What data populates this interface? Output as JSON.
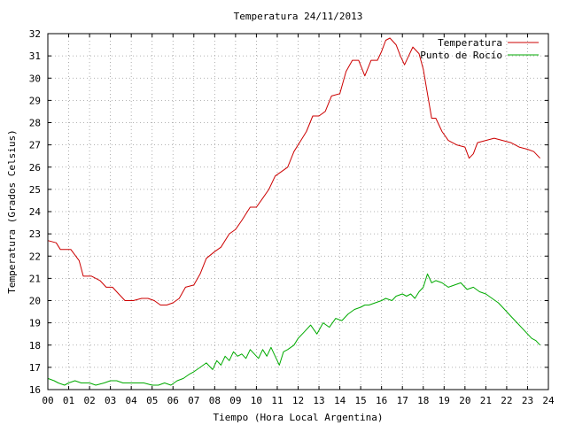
{
  "chart_data": {
    "type": "line",
    "title": "Temperatura 24/11/2013",
    "xlabel": "Tiempo (Hora Local Argentina)",
    "ylabel": "Temperatura (Grados Celsius)",
    "xlim": [
      0,
      24
    ],
    "ylim": [
      16,
      32
    ],
    "grid": true,
    "legend_position": "top-right",
    "x_ticks": [
      "00",
      "01",
      "02",
      "03",
      "04",
      "05",
      "06",
      "07",
      "08",
      "09",
      "10",
      "11",
      "12",
      "13",
      "14",
      "15",
      "16",
      "17",
      "18",
      "19",
      "20",
      "21",
      "22",
      "23",
      "24"
    ],
    "y_ticks": [
      "16",
      "17",
      "18",
      "19",
      "20",
      "21",
      "22",
      "23",
      "24",
      "25",
      "26",
      "27",
      "28",
      "29",
      "30",
      "31",
      "32"
    ],
    "series": [
      {
        "name": "Temperatura",
        "color": "#cc0000",
        "x": [
          0,
          0.4,
          0.6,
          1.1,
          1.5,
          1.7,
          2.1,
          2.5,
          2.8,
          3.1,
          3.4,
          3.7,
          4.1,
          4.5,
          4.8,
          5.1,
          5.4,
          5.7,
          6.0,
          6.3,
          6.6,
          7.0,
          7.3,
          7.6,
          8.0,
          8.3,
          8.7,
          9.0,
          9.3,
          9.7,
          10.0,
          10.3,
          10.6,
          10.9,
          11.2,
          11.5,
          11.8,
          12.2,
          12.4,
          12.7,
          13.0,
          13.3,
          13.6,
          14.0,
          14.3,
          14.6,
          14.9,
          15.2,
          15.5,
          15.8,
          16.0,
          16.2,
          16.4,
          16.7,
          16.9,
          17.1,
          17.3,
          17.5,
          17.8,
          18.0,
          18.2,
          18.4,
          18.6,
          18.9,
          19.2,
          19.6,
          20.0,
          20.2,
          20.4,
          20.6,
          21.0,
          21.4,
          21.8,
          22.2,
          22.6,
          23.0,
          23.3,
          23.6
        ],
        "values": [
          22.7,
          22.6,
          22.3,
          22.3,
          21.8,
          21.1,
          21.1,
          20.9,
          20.6,
          20.6,
          20.3,
          20.0,
          20.0,
          20.1,
          20.1,
          20.0,
          19.8,
          19.8,
          19.9,
          20.1,
          20.6,
          20.7,
          21.2,
          21.9,
          22.2,
          22.4,
          23.0,
          23.2,
          23.6,
          24.2,
          24.2,
          24.6,
          25.0,
          25.6,
          25.8,
          26.0,
          26.7,
          27.3,
          27.6,
          28.3,
          28.3,
          28.5,
          29.2,
          29.3,
          30.3,
          30.8,
          30.8,
          30.1,
          30.8,
          30.8,
          31.2,
          31.7,
          31.8,
          31.5,
          31.0,
          30.6,
          31.0,
          31.4,
          31.1,
          30.4,
          29.3,
          28.2,
          28.2,
          27.6,
          27.2,
          27.0,
          26.9,
          26.4,
          26.6,
          27.1,
          27.2,
          27.3,
          27.2,
          27.1,
          26.9,
          26.8,
          26.7,
          26.4
        ]
      },
      {
        "name": "Punto de Rocío",
        "color": "#00aa00",
        "x": [
          0,
          0.3,
          0.5,
          0.8,
          1.0,
          1.3,
          1.6,
          2.0,
          2.3,
          2.7,
          3.0,
          3.3,
          3.6,
          4.0,
          4.3,
          4.6,
          5.0,
          5.3,
          5.6,
          5.9,
          6.2,
          6.5,
          6.8,
          7.0,
          7.3,
          7.6,
          7.9,
          8.1,
          8.3,
          8.5,
          8.7,
          8.9,
          9.1,
          9.3,
          9.5,
          9.7,
          9.9,
          10.1,
          10.3,
          10.5,
          10.7,
          10.9,
          11.1,
          11.3,
          11.5,
          11.8,
          12.0,
          12.3,
          12.6,
          12.9,
          13.2,
          13.5,
          13.8,
          14.1,
          14.4,
          14.7,
          15.0,
          15.2,
          15.4,
          15.7,
          16.0,
          16.2,
          16.5,
          16.7,
          17.0,
          17.2,
          17.4,
          17.6,
          17.8,
          18.0,
          18.2,
          18.4,
          18.6,
          18.9,
          19.2,
          19.5,
          19.8,
          20.1,
          20.4,
          20.7,
          21.0,
          21.3,
          21.6,
          21.9,
          22.2,
          22.5,
          22.8,
          23.0,
          23.2,
          23.4,
          23.6
        ],
        "values": [
          16.5,
          16.4,
          16.3,
          16.2,
          16.3,
          16.4,
          16.3,
          16.3,
          16.2,
          16.3,
          16.4,
          16.4,
          16.3,
          16.3,
          16.3,
          16.3,
          16.2,
          16.2,
          16.3,
          16.2,
          16.4,
          16.5,
          16.7,
          16.8,
          17.0,
          17.2,
          16.9,
          17.3,
          17.1,
          17.5,
          17.3,
          17.7,
          17.5,
          17.6,
          17.4,
          17.8,
          17.6,
          17.4,
          17.8,
          17.5,
          17.9,
          17.5,
          17.1,
          17.7,
          17.8,
          18.0,
          18.3,
          18.6,
          18.9,
          18.5,
          19.0,
          18.8,
          19.2,
          19.1,
          19.4,
          19.6,
          19.7,
          19.8,
          19.8,
          19.9,
          20.0,
          20.1,
          20.0,
          20.2,
          20.3,
          20.2,
          20.3,
          20.1,
          20.4,
          20.6,
          21.2,
          20.8,
          20.9,
          20.8,
          20.6,
          20.7,
          20.8,
          20.5,
          20.6,
          20.4,
          20.3,
          20.1,
          19.9,
          19.6,
          19.3,
          19.0,
          18.7,
          18.5,
          18.3,
          18.2,
          18.0
        ]
      }
    ]
  }
}
